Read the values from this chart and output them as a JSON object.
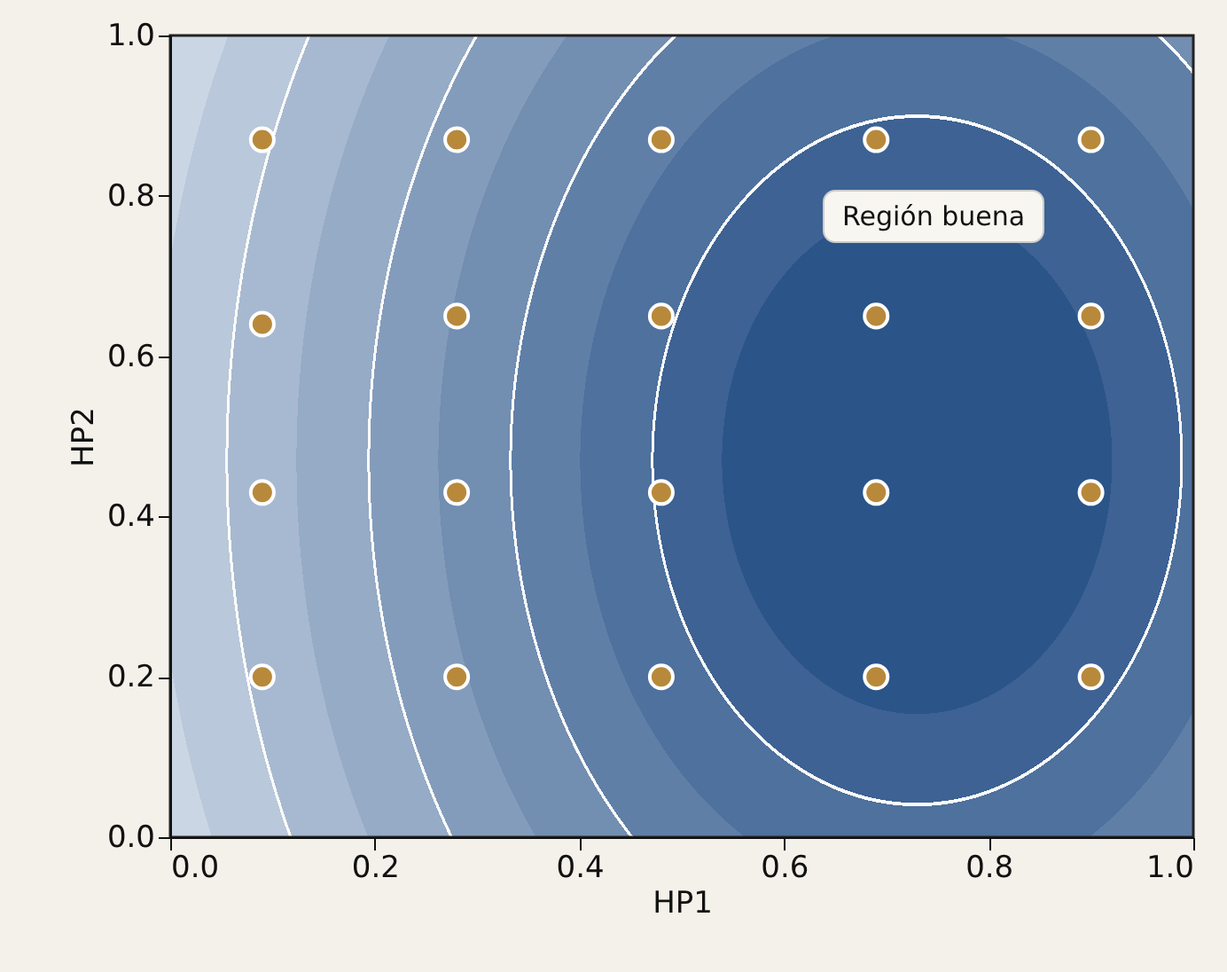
{
  "chart_data": {
    "type": "scatter",
    "xlabel": "HP1",
    "ylabel": "HP2",
    "x": [
      0.09,
      0.28,
      0.48,
      0.69,
      0.9,
      0.09,
      0.28,
      0.48,
      0.69,
      0.9,
      0.09,
      0.28,
      0.48,
      0.69,
      0.9,
      0.09,
      0.28,
      0.48,
      0.69,
      0.9
    ],
    "values": [
      0.87,
      0.87,
      0.87,
      0.87,
      0.87,
      0.64,
      0.65,
      0.65,
      0.65,
      0.65,
      0.43,
      0.43,
      0.43,
      0.43,
      0.43,
      0.2,
      0.2,
      0.2,
      0.2,
      0.2
    ],
    "color": "#b8893a",
    "marker": "circle",
    "xlim": [
      0,
      1
    ],
    "ylim": [
      0,
      1
    ],
    "xticks": [
      {
        "value": 0,
        "label": "0.0"
      },
      0.2,
      0.4,
      0.6,
      0.8,
      {
        "value": 1,
        "label": "1.0"
      }
    ],
    "yticks": [
      {
        "value": 0,
        "label": "0.0"
      },
      0.2,
      0.4,
      0.6,
      0.8,
      {
        "value": 1,
        "label": "1.0"
      }
    ],
    "annotations": [
      "Región buena"
    ]
  }
}
